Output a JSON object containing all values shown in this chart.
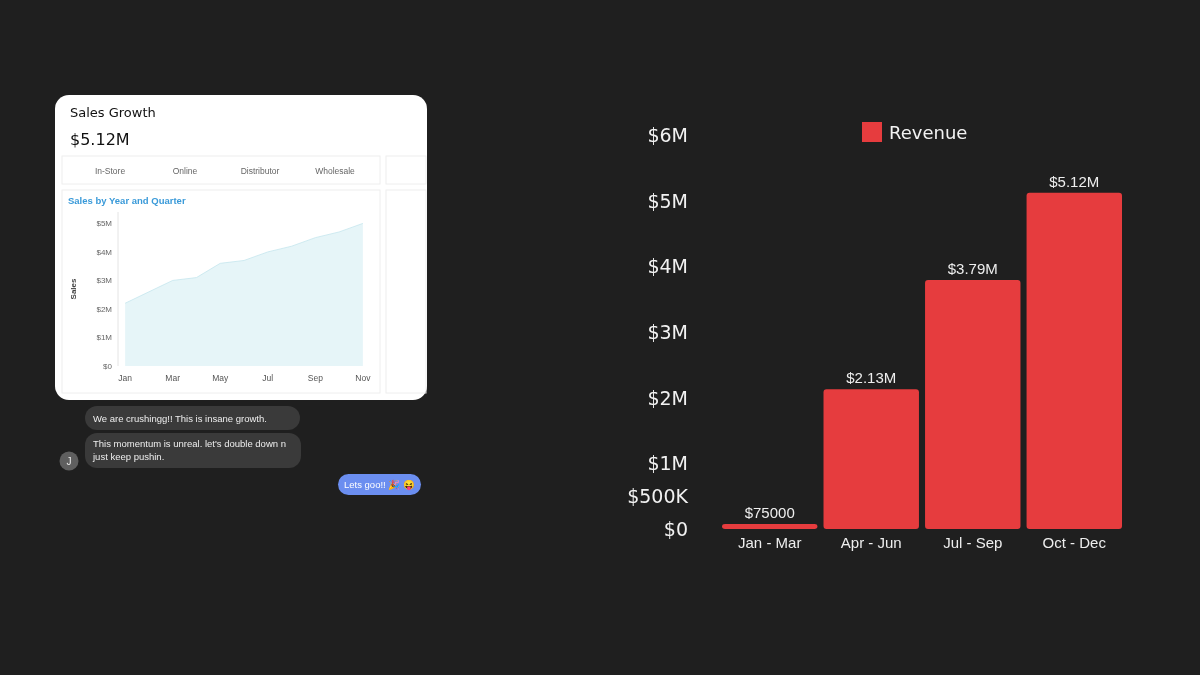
{
  "chart_data": [
    {
      "type": "other",
      "title": "Sales Growth",
      "annotations": [
        "$5.12M",
        "In-Store",
        "Online",
        "Distributor",
        "Wholesale"
      ]
    },
    {
      "type": "area",
      "title": "Sales by Year and Quarter",
      "ylabel": "Sales",
      "categories": [
        "Jan",
        null,
        "Mar",
        null,
        "May",
        null,
        "Jul",
        null,
        "Sep",
        null,
        "Nov"
      ],
      "series": [
        {
          "color": "#e6f5f8",
          "values": [
            2.2,
            2.6,
            3.0,
            3.1,
            3.6,
            3.7,
            4.0,
            4.2,
            4.5,
            4.7,
            5.0
          ]
        }
      ],
      "ylim": [
        0,
        5.4
      ],
      "yticks": [
        {
          "value": 0,
          "label": "$0"
        },
        {
          "value": 1,
          "label": "$1M"
        },
        {
          "value": 2,
          "label": "$2M"
        },
        {
          "value": 3,
          "label": "$3M"
        },
        {
          "value": 4,
          "label": "$4M"
        },
        {
          "value": 5,
          "label": "$5M"
        }
      ],
      "grid": false
    },
    {
      "type": "other",
      "annotations": [
        "We are crushingg!! This is insane growth.",
        "This momentum is unreal. let's double down n just keep pushin.",
        "Lets goo!! 🎉 😝",
        "J"
      ]
    },
    {
      "type": "bar",
      "categories": [
        "Jan - Mar",
        "Apr - Jun",
        "Jul - Sep",
        "Oct - Dec"
      ],
      "series": [
        {
          "name": "Revenue",
          "color": "#e63c3e",
          "values": [
            75000,
            2130000,
            3790000,
            5120000
          ]
        }
      ],
      "value_labels": [
        "$75000",
        "$2.13M",
        "$3.79M",
        "$5.12M"
      ],
      "ylim": [
        0,
        6000000
      ],
      "yticks": [
        {
          "value": 0,
          "label": "$0"
        },
        {
          "value": 500000,
          "label": "$500K"
        },
        {
          "value": 1000000,
          "label": "$1M"
        },
        {
          "value": 2000000,
          "label": "$2M"
        },
        {
          "value": 3000000,
          "label": "$3M"
        },
        {
          "value": 4000000,
          "label": "$4M"
        },
        {
          "value": 5000000,
          "label": "$5M"
        },
        {
          "value": 6000000,
          "label": "$6M"
        }
      ],
      "legend": "top",
      "grid": false
    }
  ]
}
